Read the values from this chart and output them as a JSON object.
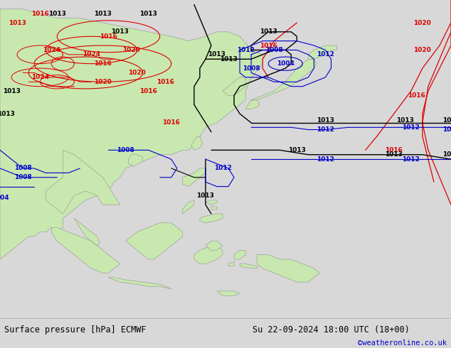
{
  "bottom_left_text": "Surface pressure [hPa] ECMWF",
  "bottom_right_text": "Su 22-09-2024 18:00 UTC (18+00)",
  "bottom_credit": "©weatheronline.co.uk",
  "ocean_color": "#d8d8d8",
  "land_color": "#c8e8b0",
  "land_edge_color": "#888888",
  "fig_width": 6.34,
  "fig_height": 4.9,
  "dpi": 100,
  "bottom_bar_color": "#f0f0f0",
  "text_color_left": "#000000",
  "text_color_right": "#000000",
  "text_color_credit": "#0000cc",
  "font_size_bottom": 8.5,
  "font_size_credit": 7.5,
  "isobar_black": "#000000",
  "isobar_red": "#dd0000",
  "isobar_blue": "#0000cc",
  "lw_main": 1.0,
  "lw_thin": 0.8,
  "label_fs": 6.5
}
